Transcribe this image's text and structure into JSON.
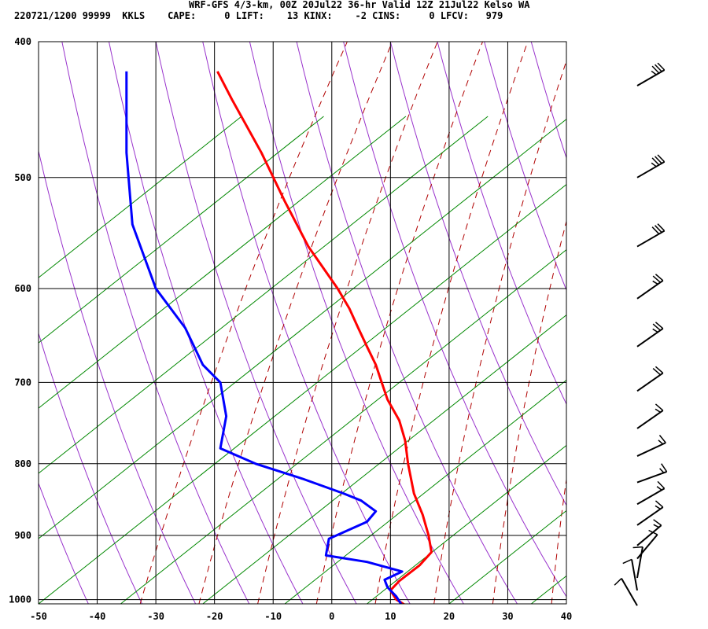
{
  "header": {
    "line1": "WRF-GFS 4/3-km, 00Z 20Jul22 36-hr Valid 12Z 21Jul22 Kelso WA",
    "line2": "220721/1200 99999  KKLS    CAPE:     0 LIFT:    13 KINX:    -2 CINS:     0 LFCV:   979"
  },
  "chart_data": {
    "type": "line",
    "xlim": [
      -50,
      40
    ],
    "pressure_levels": [
      400,
      500,
      600,
      700,
      800,
      900,
      1000
    ],
    "x_ticks": [
      -50,
      -40,
      -30,
      -20,
      -10,
      0,
      10,
      20,
      30,
      40
    ],
    "x_tick_labels": [
      "-50",
      "-40",
      "-30",
      "-20",
      "-10",
      "0",
      "10",
      "20",
      "30",
      "40"
    ],
    "y_tick_labels": [
      "400",
      "500",
      "600",
      "700",
      "800",
      "900",
      "1000"
    ],
    "series": [
      {
        "color": "#ff0000",
        "p": [
          1012,
          1000,
          985,
          970,
          945,
          925,
          900,
          870,
          840,
          800,
          770,
          745,
          720,
          700,
          680,
          660,
          640,
          620,
          600,
          560,
          520,
          480,
          440,
          420
        ],
        "t": [
          13.0,
          11.0,
          10.0,
          11.5,
          15.0,
          17.0,
          16.5,
          15.5,
          14.0,
          13.0,
          12.5,
          11.5,
          9.5,
          8.5,
          7.5,
          6.0,
          4.5,
          3.0,
          1.0,
          -4.0,
          -8.0,
          -12.0,
          -17.0,
          -19.5
        ]
      },
      {
        "color": "#0000ff",
        "p": [
          1010,
          995,
          980,
          968,
          955,
          940,
          930,
          905,
          880,
          865,
          850,
          840,
          820,
          800,
          780,
          740,
          700,
          680,
          640,
          600,
          540,
          480,
          430,
          420
        ],
        "t": [
          12.0,
          11.0,
          9.5,
          9.0,
          12.0,
          6.0,
          -1.0,
          -0.5,
          6.0,
          7.5,
          5.0,
          2.0,
          -5.0,
          -13.0,
          -19.0,
          -18.0,
          -19.0,
          -22.0,
          -25.0,
          -30.0,
          -34.0,
          -35.0,
          -35.0,
          -35.0
        ]
      }
    ],
    "wind_barbs": [
      {
        "p": 430,
        "spd": 35,
        "dir": 240
      },
      {
        "p": 500,
        "spd": 35,
        "dir": 240
      },
      {
        "p": 560,
        "spd": 30,
        "dir": 240
      },
      {
        "p": 610,
        "spd": 25,
        "dir": 235
      },
      {
        "p": 660,
        "spd": 25,
        "dir": 235
      },
      {
        "p": 710,
        "spd": 20,
        "dir": 235
      },
      {
        "p": 755,
        "spd": 15,
        "dir": 235
      },
      {
        "p": 790,
        "spd": 15,
        "dir": 245
      },
      {
        "p": 825,
        "spd": 15,
        "dir": 250
      },
      {
        "p": 855,
        "spd": 15,
        "dir": 240
      },
      {
        "p": 885,
        "spd": 15,
        "dir": 235
      },
      {
        "p": 915,
        "spd": 15,
        "dir": 230
      },
      {
        "p": 935,
        "spd": 10,
        "dir": 220
      },
      {
        "p": 965,
        "spd": 10,
        "dir": 190
      },
      {
        "p": 985,
        "spd": 10,
        "dir": 170
      },
      {
        "p": 1010,
        "spd": 10,
        "dir": 150
      }
    ]
  }
}
